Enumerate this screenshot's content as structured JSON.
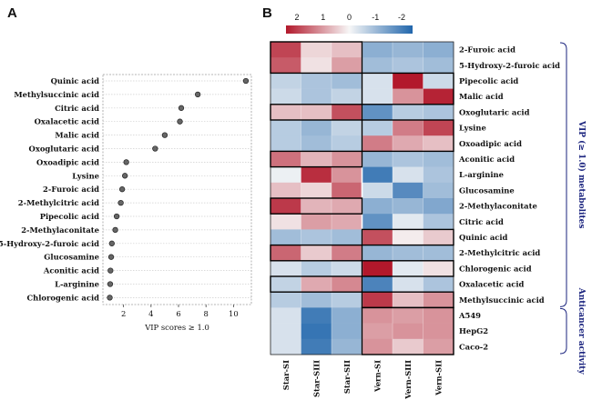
{
  "panels": {
    "a": "A",
    "b": "B"
  },
  "chart_data": [
    {
      "type": "scatter",
      "panel": "A",
      "categories": [
        "Quinic acid",
        "Methylsuccinic acid",
        "Citric acid",
        "Oxalacetic acid",
        "Malic acid",
        "Oxoglutaric acid",
        "Oxoadipic acid",
        "Lysine",
        "2-Furoic acid",
        "2-Methylcitric acid",
        "Pipecolic acid",
        "2-Methylaconitate",
        "5-Hydroxy-2-furoic acid",
        "Glucosamine",
        "Aconitic acid",
        "L-arginine",
        "Chlorogenic acid"
      ],
      "values": [
        10.9,
        7.4,
        6.2,
        6.1,
        5.0,
        4.3,
        2.2,
        2.1,
        1.9,
        1.8,
        1.5,
        1.4,
        1.15,
        1.1,
        1.05,
        1.03,
        1.0
      ],
      "xlabel": "VIP scores ≥ 1.0",
      "xticks": [
        "2",
        "4",
        "6",
        "8",
        "10"
      ],
      "xlim": [
        0.5,
        11.3
      ],
      "grid": true
    },
    {
      "type": "heatmap",
      "panel": "B",
      "columns": [
        "Star-SI",
        "Star-SIII",
        "Star-SII",
        "Vern-SI",
        "Vern-SIII",
        "Vern-SII"
      ],
      "rows": [
        "2-Furoic acid",
        "5-Hydroxy-2-furoic acid",
        "Pipecolic acid",
        "Malic acid",
        "Oxoglutaric acid",
        "Lysine",
        "Oxoadipic acid",
        "Aconitic acid",
        "L-arginine",
        "Glucosamine",
        "2-Methylaconitate",
        "Citric acid",
        "Quinic acid",
        "2-Methylcitric acid",
        "Chlorogenic acid",
        "Oxalacetic acid",
        "Methylsuccinic acid",
        "A549",
        "HepG2",
        "Caco-2"
      ],
      "values": [
        [
          1.6,
          0.3,
          0.5,
          -1.0,
          -0.9,
          -1.0
        ],
        [
          1.4,
          0.2,
          0.8,
          -0.8,
          -0.7,
          -0.8
        ],
        [
          -0.5,
          -0.7,
          -0.8,
          -0.3,
          2.5,
          -0.4
        ],
        [
          -0.4,
          -0.7,
          -0.5,
          -0.3,
          0.9,
          1.9
        ],
        [
          0.5,
          0.5,
          1.5,
          -1.4,
          -0.6,
          -0.7
        ],
        [
          -0.6,
          -0.9,
          -0.5,
          -0.6,
          1.1,
          1.6
        ],
        [
          -0.6,
          -0.8,
          -0.6,
          1.1,
          0.7,
          0.5
        ],
        [
          1.2,
          0.6,
          0.9,
          -0.9,
          -0.7,
          -0.8
        ],
        [
          -0.1,
          1.8,
          0.9,
          -1.7,
          -0.3,
          -0.7
        ],
        [
          0.5,
          0.3,
          1.3,
          -0.4,
          -1.5,
          -0.8
        ],
        [
          1.7,
          0.6,
          0.7,
          -1.0,
          -0.9,
          -1.1
        ],
        [
          0.2,
          0.8,
          0.7,
          -1.4,
          -0.2,
          -0.7
        ],
        [
          -0.8,
          -0.7,
          -0.8,
          1.5,
          0.1,
          0.4
        ],
        [
          1.3,
          0.4,
          1.1,
          -0.9,
          -0.8,
          -0.8
        ],
        [
          -0.3,
          -0.6,
          -0.4,
          2.4,
          -0.2,
          0.2
        ],
        [
          -0.5,
          0.7,
          1.0,
          -1.6,
          -0.3,
          -0.7
        ],
        [
          -0.6,
          -0.8,
          -0.6,
          1.7,
          0.5,
          0.9
        ],
        [
          -0.3,
          -1.7,
          -1.0,
          0.9,
          0.8,
          0.9
        ],
        [
          -0.3,
          -1.8,
          -1.0,
          0.8,
          0.9,
          0.9
        ],
        [
          -0.3,
          -1.7,
          -0.9,
          0.9,
          0.4,
          0.8
        ]
      ],
      "colorbar": {
        "ticks": [
          "2",
          "1",
          "0",
          "-1",
          "-2"
        ],
        "range": [
          2,
          -2
        ],
        "colors": [
          "#b2182b",
          "#f7f7f7",
          "#2166ac"
        ]
      },
      "groups": [
        {
          "label": "VIP (≥ 1.0) metabolites",
          "rows": [
            0,
            16
          ]
        },
        {
          "label": "Anticancer activity",
          "rows": [
            17,
            19
          ]
        }
      ],
      "boxes": [
        {
          "rows": [
            0,
            1
          ],
          "cols": [
            0,
            2
          ]
        },
        {
          "rows": [
            4,
            4
          ],
          "cols": [
            0,
            2
          ]
        },
        {
          "rows": [
            7,
            7
          ],
          "cols": [
            0,
            2
          ]
        },
        {
          "rows": [
            10,
            10
          ],
          "cols": [
            0,
            2
          ]
        },
        {
          "rows": [
            13,
            13
          ],
          "cols": [
            0,
            2
          ]
        },
        {
          "rows": [
            15,
            15
          ],
          "cols": [
            0,
            2
          ]
        },
        {
          "rows": [
            2,
            3
          ],
          "cols": [
            3,
            5
          ]
        },
        {
          "rows": [
            5,
            6
          ],
          "cols": [
            3,
            5
          ]
        },
        {
          "rows": [
            12,
            12
          ],
          "cols": [
            3,
            5
          ]
        },
        {
          "rows": [
            14,
            14
          ],
          "cols": [
            3,
            5
          ]
        },
        {
          "rows": [
            16,
            16
          ],
          "cols": [
            3,
            5
          ]
        },
        {
          "rows": [
            17,
            19
          ],
          "cols": [
            3,
            5
          ]
        }
      ]
    }
  ]
}
